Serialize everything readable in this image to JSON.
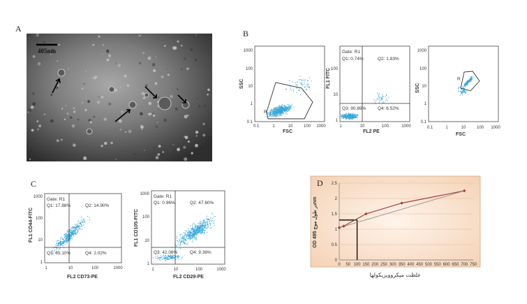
{
  "panels": {
    "A": {
      "label": "A",
      "scale_bar": "405nm"
    },
    "B": {
      "label": "B",
      "plot1": {
        "ylabel": "SSC",
        "xlabel": "FSC",
        "gate_label": "R",
        "yticks": [
          "1000",
          "100",
          "10",
          "1",
          "0.1"
        ],
        "xticks": [
          "0.1",
          "1",
          "10",
          "100",
          "1000"
        ]
      },
      "plot2": {
        "ylabel": "FL1  FITC",
        "xlabel": "FL2  PE",
        "gate": "Gate: R1",
        "q1": "Q1: 0.74%",
        "q2": "Q2: 1.83%",
        "q3": "Q3: 90.89%",
        "q4": "Q4: 6.52%",
        "yticks": [
          "100",
          "10",
          "1"
        ],
        "xticks": [
          "1",
          "10",
          "100",
          "1000"
        ]
      },
      "plot3": {
        "ylabel": "SSC",
        "xlabel": "FSC",
        "gate_label": "R",
        "yticks": [
          "1000",
          "100",
          "10",
          "1",
          "0.1"
        ],
        "xticks": [
          "0.1",
          "1",
          "10",
          "100",
          "1000"
        ]
      }
    },
    "C": {
      "label": "C",
      "plot1": {
        "ylabel": "FL1  CD44-FITC",
        "xlabel": "FL2  CD73-PE",
        "gate": "Gate: R1",
        "q1": "Q1: 17.88%",
        "q2": "Q2: 14.90%",
        "q3": "Q3: 65.10%",
        "q4": "Q4: 2.02%",
        "yticks": [
          "1000",
          "100",
          "10",
          "1"
        ],
        "xticks": [
          "1",
          "10",
          "100",
          "1000"
        ]
      },
      "plot2": {
        "ylabel": "FL1  CD105-FITC",
        "xlabel": "FL2  CD29-PE",
        "gate": "Gate: R1",
        "q1": "Q1: 0.96%",
        "q2": "Q2: 47.60%",
        "q3": "Q3: 42.08%",
        "q4": "Q4: 9.36%",
        "yticks": [
          "1000",
          "100",
          "10",
          "1"
        ],
        "xticks": [
          "1",
          "10",
          "100",
          "1000"
        ]
      }
    },
    "D": {
      "label": "D",
      "ylabel": "OD در طول موج 495nm",
      "xlabel": "غلظت میکروویزیکولها",
      "yticks": [
        "2.5",
        "2",
        "1.5",
        "1",
        "0.5",
        "0"
      ],
      "xticks": [
        "0",
        "50",
        "100",
        "150",
        "200",
        "250",
        "300",
        "350",
        "400",
        "450",
        "500",
        "550",
        "600",
        "650",
        "700",
        "750"
      ],
      "line_color": "#a0403c",
      "bg_color": "#f7dcc4"
    }
  },
  "chart_data": {
    "type": "line",
    "title": "",
    "xlabel": "غلظت میکروویزیکولها",
    "ylabel": "OD در طول موج 495nm",
    "xlim": [
      0,
      750
    ],
    "ylim": [
      0,
      2.5
    ],
    "series": [
      {
        "values": [
          [
            0,
            1.05
          ],
          [
            25,
            1.1
          ],
          [
            150,
            1.5
          ],
          [
            350,
            1.85
          ],
          [
            700,
            2.25
          ]
        ]
      }
    ],
    "guide_point": {
      "x": 100,
      "y": 1.3
    }
  }
}
